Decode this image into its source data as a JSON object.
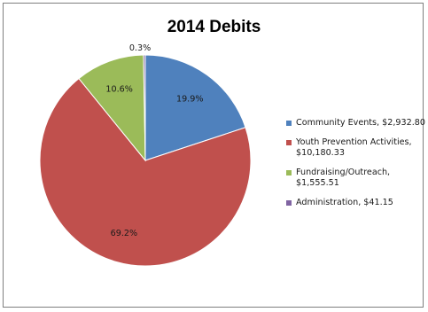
{
  "chart_data": {
    "type": "pie",
    "title": "2014 Debits",
    "slices": [
      {
        "label": "Community Events",
        "value_text": "$2,932.80",
        "value": 2932.8,
        "percent_label": "19.9%",
        "color": "#4f81bd"
      },
      {
        "label": "Youth Prevention Activities",
        "value_text": "$10,180.33",
        "value": 10180.33,
        "percent_label": "69.2%",
        "color": "#c0504d"
      },
      {
        "label": "Fundraising/Outreach",
        "value_text": "$1,555.51",
        "value": 1555.51,
        "percent_label": "10.6%",
        "color": "#9bbb59"
      },
      {
        "label": "Administration",
        "value_text": "$41.15",
        "value": 41.15,
        "percent_label": "0.3%",
        "color": "#8064a2"
      }
    ],
    "legend": [
      {
        "line1": "Community Events, $2,932.80",
        "line2": ""
      },
      {
        "line1": "Youth Prevention Activities,",
        "line2": "$10,180.33"
      },
      {
        "line1": "Fundraising/Outreach,",
        "line2": "$1,555.51"
      },
      {
        "line1": "Administration, $41.15",
        "line2": ""
      }
    ],
    "legend_position": "right"
  }
}
